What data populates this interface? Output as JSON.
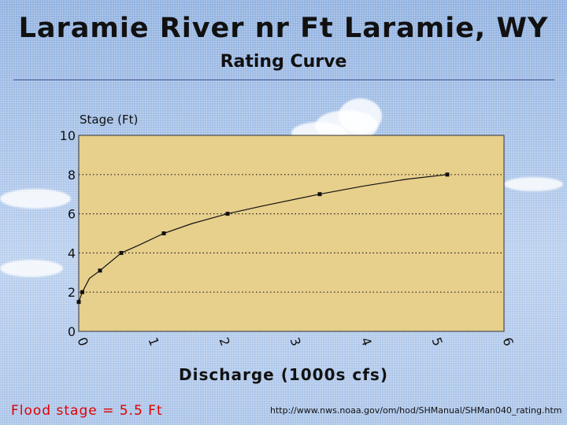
{
  "title": "Laramie River nr Ft Laramie, WY",
  "subtitle": "Rating Curve",
  "footer": {
    "flood_stage": "Flood stage = 5.5 Ft",
    "url": "http://www.nws.noaa.gov/om/hod/SHManual/SHMan040_rating.htm"
  },
  "colors": {
    "plot_background": "#e7cf8c",
    "curve": "#111111",
    "flood_text": "#e00000",
    "rule": "#3b4a8c"
  },
  "chart_data": {
    "type": "line",
    "title": "Rating Curve",
    "xlabel": "Discharge (1000s cfs)",
    "ylabel": "Stage (Ft)",
    "xlim": [
      0,
      6
    ],
    "ylim": [
      0,
      10
    ],
    "xticks": [
      "0",
      "1",
      "2",
      "3",
      "4",
      "5",
      "6"
    ],
    "yticks": [
      "0",
      "2",
      "4",
      "6",
      "8",
      "10"
    ],
    "y_gridlines": [
      2,
      4,
      6,
      8
    ],
    "grid": "horizontal dotted",
    "series": [
      {
        "x": [
          0.0,
          0.05,
          0.15,
          0.3,
          0.6,
          0.85,
          1.2,
          1.6,
          2.1,
          2.6,
          3.4,
          4.0,
          4.6,
          5.2
        ],
        "y": [
          1.5,
          2.0,
          2.7,
          3.1,
          4.0,
          4.4,
          5.0,
          5.5,
          6.0,
          6.4,
          7.0,
          7.4,
          7.75,
          8.0
        ]
      }
    ],
    "markers": [
      {
        "x": 0.0,
        "y": 1.5
      },
      {
        "x": 0.05,
        "y": 2.0
      },
      {
        "x": 0.3,
        "y": 3.1
      },
      {
        "x": 0.6,
        "y": 4.0
      },
      {
        "x": 1.2,
        "y": 5.0
      },
      {
        "x": 2.1,
        "y": 6.0
      },
      {
        "x": 3.4,
        "y": 7.0
      },
      {
        "x": 5.2,
        "y": 8.0
      }
    ]
  }
}
